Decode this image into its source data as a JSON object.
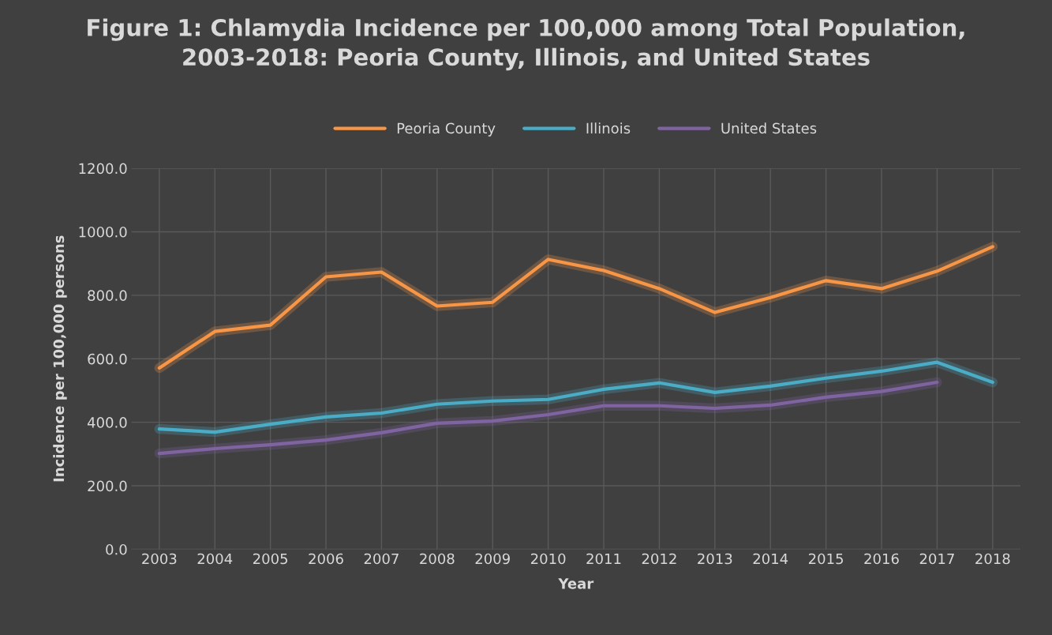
{
  "chart_data": {
    "type": "line",
    "title": "Figure 1: Chlamydia Incidence per 100,000 among Total Population,\n2003-2018: Peoria County, Illinois, and United States",
    "xlabel": "Year",
    "ylabel": "Incidence per 100,000 persons",
    "categories": [
      "2003",
      "2004",
      "2005",
      "2006",
      "2007",
      "2008",
      "2009",
      "2010",
      "2011",
      "2012",
      "2013",
      "2014",
      "2015",
      "2016",
      "2017",
      "2018"
    ],
    "series": [
      {
        "name": "Peoria County",
        "color": "#f79646",
        "values": [
          571,
          686,
          706,
          858,
          873,
          766,
          778,
          913,
          878,
          821,
          746,
          793,
          846,
          821,
          876,
          953
        ]
      },
      {
        "name": "Illinois",
        "color": "#4bacc6",
        "values": [
          379,
          369,
          394,
          417,
          429,
          457,
          467,
          472,
          504,
          524,
          494,
          514,
          539,
          561,
          589,
          526
        ]
      },
      {
        "name": "United States",
        "color": "#8064a2",
        "values": [
          302,
          317,
          329,
          344,
          367,
          397,
          404,
          424,
          452,
          452,
          444,
          454,
          479,
          497,
          526,
          null
        ]
      }
    ],
    "ylim": [
      0,
      1200
    ],
    "yticks": [
      {
        "value": 0,
        "label": "0.0"
      },
      {
        "value": 200,
        "label": "200.0"
      },
      {
        "value": 400,
        "label": "400.0"
      },
      {
        "value": 600,
        "label": "600.0"
      },
      {
        "value": 800,
        "label": "800.0"
      },
      {
        "value": 1000,
        "label": "1000.0"
      },
      {
        "value": 1200,
        "label": "1200.0"
      }
    ],
    "grid": true,
    "legend": "top",
    "marker": "none",
    "line_style": "solid"
  }
}
